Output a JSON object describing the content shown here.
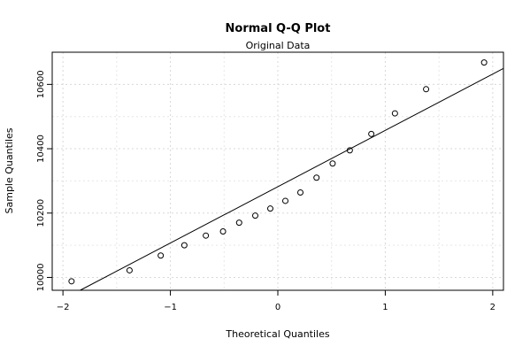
{
  "chart_data": {
    "type": "scatter",
    "title": "Normal Q-Q Plot",
    "subtitle": "Original Data",
    "xlabel": "Theoretical Quantiles",
    "ylabel": "Sample Quantiles",
    "xlim": [
      -2.1,
      2.1
    ],
    "ylim": [
      9960,
      10700
    ],
    "xticks": [
      -2,
      -1,
      0,
      1,
      2
    ],
    "yticks": [
      10000,
      10200,
      10400,
      10600
    ],
    "grid": true,
    "series": [
      {
        "x": [
          -1.92,
          -1.38,
          -1.09,
          -0.87,
          -0.67,
          -0.51,
          -0.36,
          -0.21,
          -0.07,
          0.07,
          0.21,
          0.36,
          0.51,
          0.67,
          0.87,
          1.09,
          1.38,
          1.92
        ],
        "y": [
          9988,
          10022,
          10068,
          10100,
          10130,
          10143,
          10170,
          10192,
          10214,
          10238,
          10264,
          10310,
          10354,
          10395,
          10446,
          10510,
          10585,
          10668
        ]
      }
    ],
    "reference_line": {
      "intercept": 10282,
      "slope": 175
    }
  }
}
